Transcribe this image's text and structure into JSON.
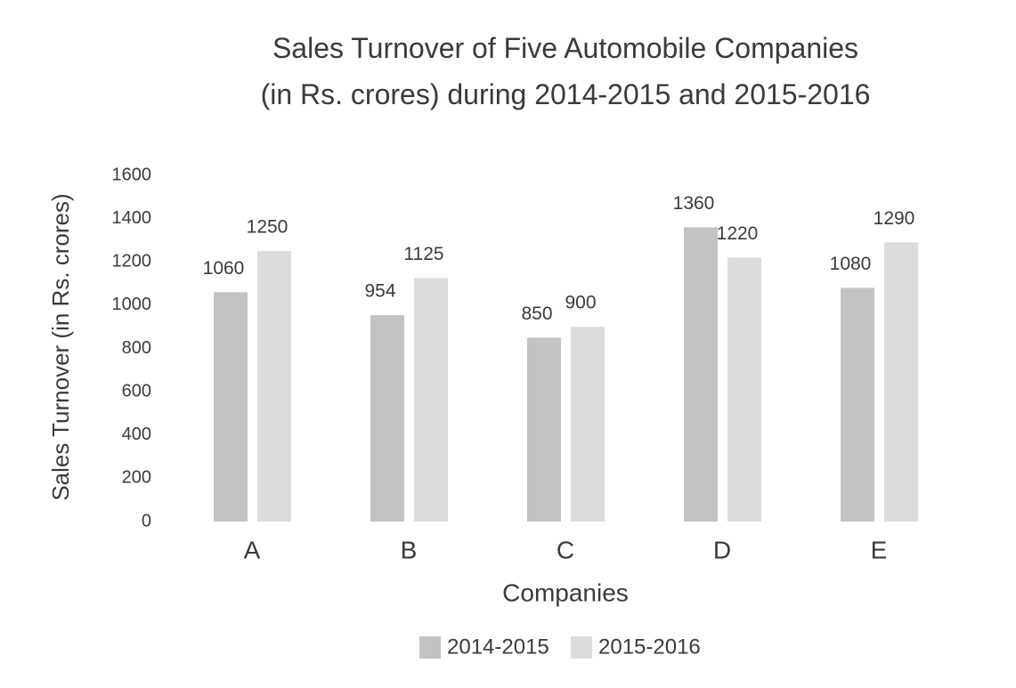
{
  "chart_data": {
    "type": "bar",
    "title": "Sales Turnover of Five Automobile Companies\n(in Rs. crores) during 2014-2015 and 2015-2016",
    "x_label": "Companies",
    "y_label": "Sales Turnover (in Rs. crores)",
    "categories": [
      "A",
      "B",
      "C",
      "D",
      "E"
    ],
    "series": [
      {
        "name": "2014-2015",
        "color": "#c3c3c3",
        "values": [
          1060,
          954,
          850,
          1360,
          1080
        ]
      },
      {
        "name": "2015-2016",
        "color": "#dcdcdc",
        "values": [
          1250,
          1125,
          900,
          1220,
          1290
        ]
      }
    ],
    "ylim": [
      0,
      1600
    ],
    "yticks": [
      0,
      200,
      400,
      600,
      800,
      1000,
      1200,
      1400,
      1600
    ],
    "grid": false,
    "legend": "bottom"
  }
}
